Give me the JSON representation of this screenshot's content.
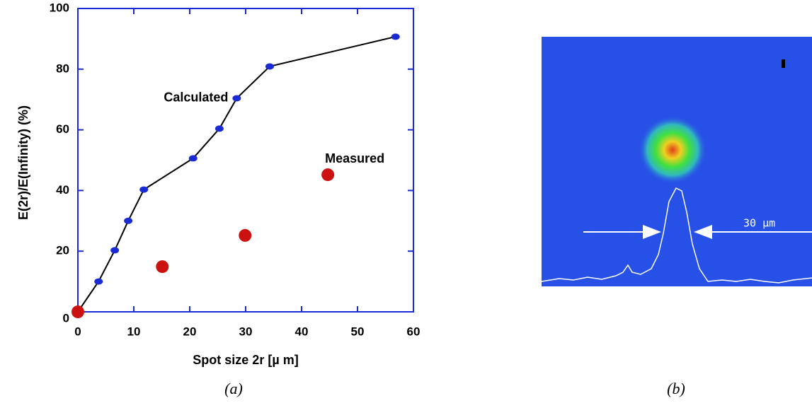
{
  "chart_data": {
    "type": "line",
    "xlabel": "Spot size 2r [µ m]",
    "ylabel": "E(2r)/E(Infinity)   (%)",
    "caption": "(a)",
    "xlim": [
      0,
      60
    ],
    "xticks": [
      0,
      10,
      20,
      30,
      40,
      50,
      60
    ],
    "ylim": [
      0,
      100
    ],
    "yticks": [
      0,
      20,
      40,
      60,
      80,
      100
    ],
    "axis_color": "#1a2bd6",
    "series": [
      {
        "name": "Calculated",
        "type": "line",
        "color": "#000000",
        "marker_color": "#1a2bd6",
        "x": [
          0,
          3.7,
          6.6,
          9,
          11.8,
          20.6,
          25.3,
          28.4,
          34.3,
          56.8
        ],
        "values": [
          0,
          10,
          20.3,
          30,
          40.3,
          50.6,
          60.4,
          70.4,
          80.9,
          90.7
        ]
      },
      {
        "name": "Measured",
        "type": "scatter",
        "color": "#cc1111",
        "x": [
          0,
          15.1,
          29.9,
          44.7
        ],
        "values": [
          0,
          14.9,
          25.2,
          45.2
        ]
      }
    ]
  },
  "figure_b": {
    "scale_label": "30 µm",
    "caption": "(b)"
  }
}
